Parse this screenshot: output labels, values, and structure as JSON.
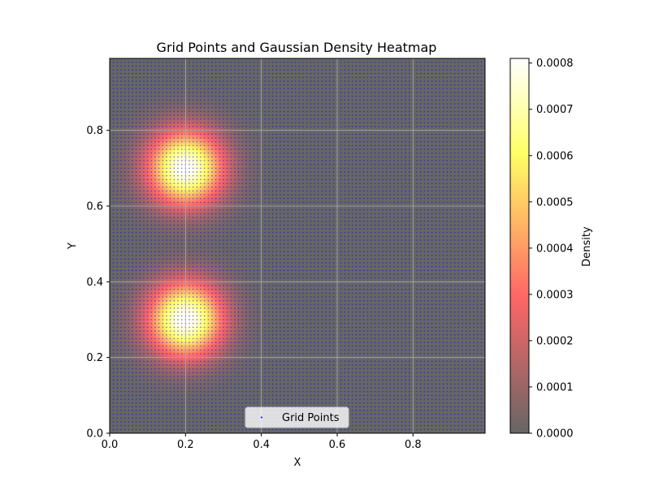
{
  "chart_data": {
    "type": "heatmap",
    "title": "Grid Points and Gaussian Density Heatmap",
    "xlabel": "X",
    "ylabel": "Y",
    "xlim": [
      0.0,
      0.99
    ],
    "ylim": [
      0.0,
      0.99
    ],
    "x_ticks": [
      0.0,
      0.2,
      0.4,
      0.6,
      0.8
    ],
    "x_tick_labels": [
      "0.0",
      "0.2",
      "0.4",
      "0.6",
      "0.8"
    ],
    "y_ticks": [
      0.0,
      0.2,
      0.4,
      0.6,
      0.8
    ],
    "y_tick_labels": [
      "0.0",
      "0.2",
      "0.4",
      "0.6",
      "0.8"
    ],
    "grid": true,
    "density": {
      "components": [
        {
          "center": [
            0.2,
            0.7
          ],
          "sigma": 0.07,
          "peak": 0.00081
        },
        {
          "center": [
            0.2,
            0.3
          ],
          "sigma": 0.07,
          "peak": 0.00081
        }
      ],
      "resolution": 0.01
    },
    "series": [
      {
        "name": "Grid Points",
        "kind": "scatter",
        "color": "#0000ff",
        "x_step": 0.01,
        "y_step": 0.01
      }
    ],
    "legend": {
      "position": "bottom-center",
      "label": "Grid Points"
    },
    "colorbar": {
      "label": "Density",
      "min": 0.0,
      "max": 0.00081,
      "colormap": "hot",
      "alpha": 0.6,
      "ticks": [
        0.0,
        0.0001,
        0.0002,
        0.0003,
        0.0004,
        0.0005,
        0.0006,
        0.0007,
        0.0008
      ],
      "tick_labels": [
        "0.0000",
        "0.0001",
        "0.0002",
        "0.0003",
        "0.0004",
        "0.0005",
        "0.0006",
        "0.0007",
        "0.0008"
      ]
    }
  }
}
